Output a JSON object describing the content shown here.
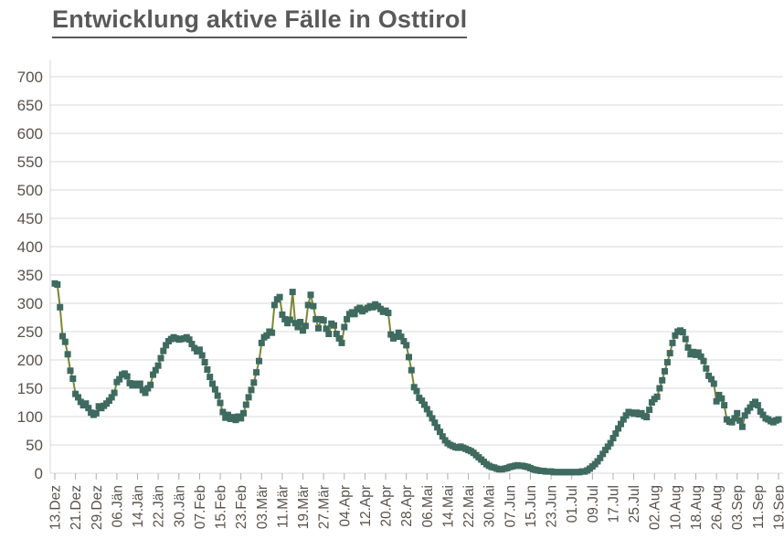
{
  "header": {
    "title": "Entwicklung aktive Fälle in Osttirol"
  },
  "colors": {
    "title_text": "#595959",
    "axis_text": "#5a524b",
    "gridline": "#d9d9d9",
    "axis_line": "#d9d9d9",
    "tick_mark": "#b0aeac",
    "line": "#7a8734",
    "marker": "#3e6a60",
    "background": "#ffffff"
  },
  "chart_data": {
    "type": "line",
    "title": "Entwicklung aktive Fälle in Osttirol",
    "xlabel": "",
    "ylabel": "",
    "ylim": [
      0,
      700
    ],
    "y_tick_step": 50,
    "y_tick_labels": [
      "0",
      "50",
      "100",
      "150",
      "200",
      "250",
      "300",
      "350",
      "400",
      "450",
      "500",
      "550",
      "600",
      "650",
      "700"
    ],
    "x_tick_interval_points": 8,
    "x_tick_labels": [
      "13.Dez",
      "21.Dez",
      "29.Dez",
      "06.Jän",
      "14.Jän",
      "22.Jän",
      "30.Jän",
      "07.Feb",
      "15.Feb",
      "23.Feb",
      "03.Mär",
      "11.Mär",
      "19.Mär",
      "27.Mär",
      "04.Apr",
      "12.Apr",
      "20.Apr",
      "28.Apr",
      "06.Mai",
      "14.Mai",
      "22.Mai",
      "30.Mai",
      "07.Jun",
      "15.Jun",
      "23.Jun",
      "01.Jul",
      "09.Jul",
      "17.Jul",
      "25.Jul",
      "02.Aug",
      "10.Aug",
      "18.Aug",
      "26.Aug",
      "03.Sep",
      "11.Sep",
      "19.Sep"
    ],
    "grid": "horizontal",
    "legend": "none",
    "marker_shape": "square",
    "series": [
      {
        "name": "aktive Fälle",
        "values": [
          335,
          333,
          293,
          242,
          232,
          210,
          181,
          167,
          140,
          134,
          126,
          120,
          123,
          115,
          107,
          103,
          106,
          118,
          115,
          119,
          123,
          128,
          134,
          142,
          161,
          166,
          174,
          176,
          171,
          159,
          155,
          158,
          155,
          158,
          147,
          142,
          150,
          156,
          174,
          182,
          190,
          203,
          216,
          226,
          233,
          237,
          240,
          238,
          236,
          237,
          238,
          240,
          236,
          228,
          221,
          215,
          218,
          208,
          196,
          183,
          170,
          158,
          148,
          137,
          124,
          108,
          98,
          103,
          96,
          99,
          94,
          100,
          97,
          106,
          121,
          134,
          147,
          160,
          178,
          198,
          230,
          240,
          243,
          250,
          248,
          297,
          307,
          311,
          280,
          272,
          265,
          271,
          320,
          265,
          258,
          267,
          252,
          260,
          297,
          315,
          295,
          272,
          256,
          272,
          270,
          255,
          246,
          264,
          261,
          246,
          238,
          230,
          258,
          272,
          281,
          284,
          281,
          289,
          292,
          286,
          289,
          292,
          295,
          293,
          298,
          295,
          290,
          285,
          287,
          283,
          245,
          238,
          241,
          248,
          241,
          233,
          226,
          205,
          182,
          152,
          145,
          133,
          128,
          121,
          113,
          105,
          97,
          89,
          81,
          73,
          65,
          58,
          53,
          50,
          48,
          46,
          45,
          47,
          45,
          43,
          41,
          39,
          36,
          32,
          28,
          24,
          20,
          16,
          13,
          11,
          10,
          8,
          7,
          7,
          8,
          9,
          11,
          12,
          13,
          14,
          13,
          13,
          12,
          11,
          9,
          7,
          6,
          5,
          4,
          4,
          3,
          3,
          3,
          2,
          2,
          2,
          2,
          2,
          2,
          2,
          2,
          2,
          2,
          2,
          3,
          3,
          5,
          8,
          12,
          16,
          21,
          27,
          34,
          41,
          47,
          53,
          62,
          70,
          79,
          87,
          95,
          102,
          108,
          107,
          105,
          107,
          104,
          106,
          101,
          99,
          112,
          125,
          131,
          135,
          150,
          164,
          180,
          196,
          212,
          230,
          243,
          250,
          252,
          249,
          237,
          222,
          210,
          214,
          209,
          213,
          206,
          198,
          185,
          172,
          166,
          158,
          127,
          138,
          132,
          120,
          95,
          91,
          90,
          97,
          106,
          93,
          82,
          102,
          110,
          116,
          122,
          126,
          120,
          109,
          103,
          97,
          95,
          92,
          90,
          93,
          95
        ]
      }
    ]
  }
}
